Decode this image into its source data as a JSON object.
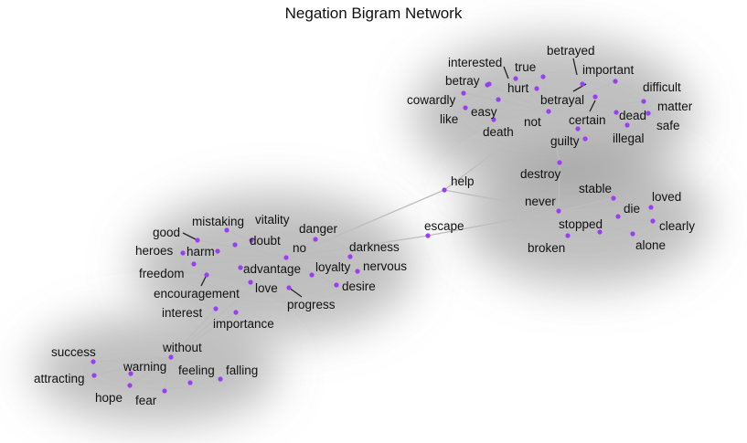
{
  "title": "Negation Bigram Network",
  "colors": {
    "node": "#9b3df2",
    "edge": "#bdbdbd",
    "label": "#111111",
    "halo": "#8a8a8a"
  },
  "hubs": [
    "not",
    "never",
    "no",
    "without",
    "help"
  ],
  "words": {
    "not": "not",
    "never": "never",
    "no": "no",
    "without": "without",
    "help": "help",
    "interested": "interested",
    "true": "true",
    "betrayed": "betrayed",
    "important": "important",
    "betray": "betray",
    "hurt": "hurt",
    "betrayal": "betrayal",
    "difficult": "difficult",
    "cowardly": "cowardly",
    "easy": "easy",
    "matter": "matter",
    "like": "like",
    "certain": "certain",
    "dead": "dead",
    "safe": "safe",
    "death": "death",
    "guilty": "guilty",
    "illegal": "illegal",
    "destroy": "destroy",
    "stable": "stable",
    "loved": "loved",
    "die": "die",
    "clearly": "clearly",
    "stopped": "stopped",
    "broken": "broken",
    "alone": "alone",
    "escape": "escape",
    "mistaking": "mistaking",
    "vitality": "vitality",
    "danger": "danger",
    "good": "good",
    "doubt": "doubt",
    "heroes": "heroes",
    "harm": "harm",
    "darkness": "darkness",
    "freedom": "freedom",
    "advantage": "advantage",
    "loyalty": "loyalty",
    "nervous": "nervous",
    "encouragement": "encouragement",
    "love": "love",
    "desire": "desire",
    "progress": "progress",
    "interest": "interest",
    "importance": "importance",
    "success": "success",
    "warning": "warning",
    "feeling": "feeling",
    "falling": "falling",
    "attracting": "attracting",
    "hope": "hope",
    "fear": "fear"
  },
  "edges": [
    [
      "not",
      "interested"
    ],
    [
      "not",
      "true"
    ],
    [
      "not",
      "betrayed"
    ],
    [
      "not",
      "important"
    ],
    [
      "not",
      "betray"
    ],
    [
      "not",
      "hurt"
    ],
    [
      "not",
      "betrayal"
    ],
    [
      "not",
      "difficult"
    ],
    [
      "not",
      "cowardly"
    ],
    [
      "not",
      "easy"
    ],
    [
      "not",
      "matter"
    ],
    [
      "not",
      "like"
    ],
    [
      "not",
      "certain"
    ],
    [
      "not",
      "dead"
    ],
    [
      "not",
      "safe"
    ],
    [
      "not",
      "death"
    ],
    [
      "not",
      "guilty"
    ],
    [
      "not",
      "illegal"
    ],
    [
      "not",
      "destroy"
    ],
    [
      "help",
      "not"
    ],
    [
      "help",
      "never"
    ],
    [
      "help",
      "no"
    ],
    [
      "never",
      "destroy"
    ],
    [
      "never",
      "stable"
    ],
    [
      "never",
      "loved"
    ],
    [
      "never",
      "die"
    ],
    [
      "never",
      "clearly"
    ],
    [
      "never",
      "stopped"
    ],
    [
      "never",
      "broken"
    ],
    [
      "never",
      "alone"
    ],
    [
      "never",
      "escape"
    ],
    [
      "no",
      "escape"
    ],
    [
      "no",
      "mistaking"
    ],
    [
      "no",
      "vitality"
    ],
    [
      "no",
      "danger"
    ],
    [
      "no",
      "good"
    ],
    [
      "no",
      "doubt"
    ],
    [
      "no",
      "heroes"
    ],
    [
      "no",
      "harm"
    ],
    [
      "no",
      "darkness"
    ],
    [
      "no",
      "freedom"
    ],
    [
      "no",
      "advantage"
    ],
    [
      "no",
      "loyalty"
    ],
    [
      "no",
      "nervous"
    ],
    [
      "no",
      "encouragement"
    ],
    [
      "no",
      "love"
    ],
    [
      "no",
      "desire"
    ],
    [
      "no",
      "progress"
    ],
    [
      "no",
      "without"
    ],
    [
      "without",
      "interest"
    ],
    [
      "without",
      "importance"
    ],
    [
      "without",
      "success"
    ],
    [
      "without",
      "warning"
    ],
    [
      "without",
      "feeling"
    ],
    [
      "without",
      "falling"
    ],
    [
      "without",
      "attracting"
    ],
    [
      "without",
      "hope"
    ],
    [
      "without",
      "fear"
    ]
  ]
}
